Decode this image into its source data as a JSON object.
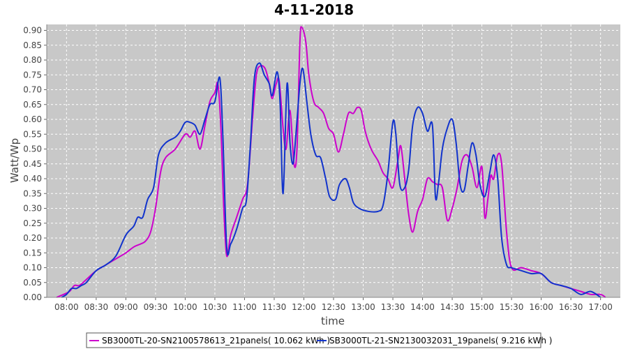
{
  "chart_data": {
    "type": "line",
    "title": "4-11-2018",
    "xlabel": "time",
    "ylabel": "Watt/Wp",
    "ylim": [
      0,
      0.92
    ],
    "y_ticks": [
      "0.00",
      "0.05",
      "0.10",
      "0.15",
      "0.20",
      "0.25",
      "0.30",
      "0.35",
      "0.40",
      "0.45",
      "0.50",
      "0.55",
      "0.60",
      "0.65",
      "0.70",
      "0.75",
      "0.80",
      "0.85",
      "0.90"
    ],
    "x_ticks": [
      "08:00",
      "08:30",
      "09:00",
      "09:30",
      "10:00",
      "10:30",
      "11:00",
      "11:30",
      "12:00",
      "12:30",
      "13:00",
      "13:30",
      "14:00",
      "14:30",
      "15:00",
      "15:30",
      "16:00",
      "16:30",
      "17:00"
    ],
    "grid": true,
    "legend_position": "bottom",
    "colors": {
      "plot_bg": "#c8c8c8",
      "grid": "#ffffff"
    },
    "series": [
      {
        "name": "SB3000TL-20-SN2100578613_21panels( 10.062 kWh )",
        "color": "#cc00cc",
        "points": [
          [
            "07:50",
            0.0
          ],
          [
            "07:57",
            0.01
          ],
          [
            "08:03",
            0.02
          ],
          [
            "08:08",
            0.04
          ],
          [
            "08:13",
            0.04
          ],
          [
            "08:20",
            0.06
          ],
          [
            "08:30",
            0.09
          ],
          [
            "08:40",
            0.11
          ],
          [
            "08:50",
            0.13
          ],
          [
            "09:00",
            0.15
          ],
          [
            "09:08",
            0.17
          ],
          [
            "09:15",
            0.18
          ],
          [
            "09:20",
            0.19
          ],
          [
            "09:25",
            0.22
          ],
          [
            "09:30",
            0.3
          ],
          [
            "09:35",
            0.42
          ],
          [
            "09:40",
            0.47
          ],
          [
            "09:50",
            0.5
          ],
          [
            "10:00",
            0.55
          ],
          [
            "10:05",
            0.54
          ],
          [
            "10:10",
            0.56
          ],
          [
            "10:15",
            0.5
          ],
          [
            "10:20",
            0.58
          ],
          [
            "10:25",
            0.66
          ],
          [
            "10:30",
            0.69
          ],
          [
            "10:33",
            0.72
          ],
          [
            "10:36",
            0.58
          ],
          [
            "10:39",
            0.3
          ],
          [
            "10:42",
            0.14
          ],
          [
            "10:46",
            0.21
          ],
          [
            "10:52",
            0.27
          ],
          [
            "10:58",
            0.33
          ],
          [
            "11:03",
            0.38
          ],
          [
            "11:08",
            0.6
          ],
          [
            "11:12",
            0.75
          ],
          [
            "11:16",
            0.78
          ],
          [
            "11:21",
            0.77
          ],
          [
            "11:25",
            0.72
          ],
          [
            "11:28",
            0.67
          ],
          [
            "11:32",
            0.72
          ],
          [
            "11:35",
            0.73
          ],
          [
            "11:39",
            0.57
          ],
          [
            "11:42",
            0.5
          ],
          [
            "11:46",
            0.63
          ],
          [
            "11:50",
            0.45
          ],
          [
            "11:53",
            0.5
          ],
          [
            "11:56",
            0.86
          ],
          [
            "11:58",
            0.91
          ],
          [
            "12:02",
            0.86
          ],
          [
            "12:05",
            0.75
          ],
          [
            "12:10",
            0.66
          ],
          [
            "12:15",
            0.64
          ],
          [
            "12:20",
            0.62
          ],
          [
            "12:25",
            0.57
          ],
          [
            "12:30",
            0.55
          ],
          [
            "12:35",
            0.49
          ],
          [
            "12:40",
            0.55
          ],
          [
            "12:45",
            0.62
          ],
          [
            "12:50",
            0.62
          ],
          [
            "12:54",
            0.64
          ],
          [
            "12:58",
            0.63
          ],
          [
            "13:02",
            0.56
          ],
          [
            "13:08",
            0.5
          ],
          [
            "13:15",
            0.46
          ],
          [
            "13:20",
            0.42
          ],
          [
            "13:25",
            0.4
          ],
          [
            "13:30",
            0.37
          ],
          [
            "13:35",
            0.46
          ],
          [
            "13:38",
            0.51
          ],
          [
            "13:42",
            0.4
          ],
          [
            "13:46",
            0.28
          ],
          [
            "13:50",
            0.22
          ],
          [
            "13:55",
            0.29
          ],
          [
            "14:00",
            0.33
          ],
          [
            "14:05",
            0.4
          ],
          [
            "14:10",
            0.39
          ],
          [
            "14:15",
            0.38
          ],
          [
            "14:20",
            0.37
          ],
          [
            "14:25",
            0.26
          ],
          [
            "14:30",
            0.3
          ],
          [
            "14:35",
            0.37
          ],
          [
            "14:40",
            0.46
          ],
          [
            "14:45",
            0.48
          ],
          [
            "14:50",
            0.44
          ],
          [
            "14:55",
            0.37
          ],
          [
            "15:00",
            0.44
          ],
          [
            "15:03",
            0.27
          ],
          [
            "15:06",
            0.33
          ],
          [
            "15:09",
            0.41
          ],
          [
            "15:12",
            0.4
          ],
          [
            "15:16",
            0.48
          ],
          [
            "15:20",
            0.45
          ],
          [
            "15:25",
            0.22
          ],
          [
            "15:30",
            0.1
          ],
          [
            "15:40",
            0.1
          ],
          [
            "15:50",
            0.09
          ],
          [
            "16:00",
            0.08
          ],
          [
            "16:10",
            0.05
          ],
          [
            "16:20",
            0.04
          ],
          [
            "16:30",
            0.03
          ],
          [
            "16:40",
            0.02
          ],
          [
            "16:50",
            0.01
          ],
          [
            "17:00",
            0.01
          ],
          [
            "17:05",
            0.0
          ]
        ]
      },
      {
        "name": "SB3000TL-21-SN2130032031_19panels( 9.216 kWh )",
        "color": "#1133cc",
        "points": [
          [
            "07:55",
            0.0
          ],
          [
            "08:00",
            0.01
          ],
          [
            "08:05",
            0.03
          ],
          [
            "08:10",
            0.03
          ],
          [
            "08:15",
            0.04
          ],
          [
            "08:20",
            0.05
          ],
          [
            "08:30",
            0.09
          ],
          [
            "08:40",
            0.11
          ],
          [
            "08:50",
            0.14
          ],
          [
            "09:00",
            0.21
          ],
          [
            "09:08",
            0.24
          ],
          [
            "09:12",
            0.27
          ],
          [
            "09:17",
            0.27
          ],
          [
            "09:22",
            0.33
          ],
          [
            "09:28",
            0.37
          ],
          [
            "09:33",
            0.48
          ],
          [
            "09:40",
            0.52
          ],
          [
            "09:50",
            0.54
          ],
          [
            "09:55",
            0.56
          ],
          [
            "10:00",
            0.59
          ],
          [
            "10:05",
            0.59
          ],
          [
            "10:10",
            0.58
          ],
          [
            "10:15",
            0.55
          ],
          [
            "10:20",
            0.6
          ],
          [
            "10:25",
            0.65
          ],
          [
            "10:30",
            0.66
          ],
          [
            "10:35",
            0.74
          ],
          [
            "10:38",
            0.55
          ],
          [
            "10:42",
            0.17
          ],
          [
            "10:46",
            0.18
          ],
          [
            "10:52",
            0.23
          ],
          [
            "10:58",
            0.3
          ],
          [
            "11:02",
            0.33
          ],
          [
            "11:06",
            0.52
          ],
          [
            "11:10",
            0.74
          ],
          [
            "11:15",
            0.79
          ],
          [
            "11:20",
            0.75
          ],
          [
            "11:25",
            0.72
          ],
          [
            "11:28",
            0.68
          ],
          [
            "11:33",
            0.76
          ],
          [
            "11:36",
            0.65
          ],
          [
            "11:39",
            0.35
          ],
          [
            "11:43",
            0.72
          ],
          [
            "11:46",
            0.52
          ],
          [
            "11:49",
            0.45
          ],
          [
            "11:52",
            0.55
          ],
          [
            "11:56",
            0.72
          ],
          [
            "11:59",
            0.77
          ],
          [
            "12:03",
            0.66
          ],
          [
            "12:07",
            0.55
          ],
          [
            "12:12",
            0.48
          ],
          [
            "12:17",
            0.47
          ],
          [
            "12:22",
            0.4
          ],
          [
            "12:26",
            0.34
          ],
          [
            "12:32",
            0.33
          ],
          [
            "12:36",
            0.38
          ],
          [
            "12:42",
            0.4
          ],
          [
            "12:46",
            0.37
          ],
          [
            "12:50",
            0.32
          ],
          [
            "12:56",
            0.3
          ],
          [
            "13:05",
            0.29
          ],
          [
            "13:15",
            0.29
          ],
          [
            "13:20",
            0.31
          ],
          [
            "13:25",
            0.42
          ],
          [
            "13:30",
            0.59
          ],
          [
            "13:33",
            0.55
          ],
          [
            "13:37",
            0.38
          ],
          [
            "13:42",
            0.37
          ],
          [
            "13:46",
            0.43
          ],
          [
            "13:50",
            0.58
          ],
          [
            "13:55",
            0.64
          ],
          [
            "14:00",
            0.62
          ],
          [
            "14:05",
            0.56
          ],
          [
            "14:10",
            0.58
          ],
          [
            "14:13",
            0.34
          ],
          [
            "14:16",
            0.38
          ],
          [
            "14:20",
            0.5
          ],
          [
            "14:25",
            0.57
          ],
          [
            "14:30",
            0.6
          ],
          [
            "14:34",
            0.52
          ],
          [
            "14:38",
            0.38
          ],
          [
            "14:42",
            0.36
          ],
          [
            "14:46",
            0.44
          ],
          [
            "14:50",
            0.52
          ],
          [
            "14:54",
            0.48
          ],
          [
            "14:58",
            0.38
          ],
          [
            "15:03",
            0.34
          ],
          [
            "15:08",
            0.42
          ],
          [
            "15:12",
            0.48
          ],
          [
            "15:16",
            0.4
          ],
          [
            "15:20",
            0.2
          ],
          [
            "15:25",
            0.11
          ],
          [
            "15:30",
            0.1
          ],
          [
            "15:40",
            0.09
          ],
          [
            "15:50",
            0.08
          ],
          [
            "16:00",
            0.08
          ],
          [
            "16:10",
            0.05
          ],
          [
            "16:20",
            0.04
          ],
          [
            "16:30",
            0.03
          ],
          [
            "16:40",
            0.01
          ],
          [
            "16:50",
            0.02
          ],
          [
            "17:00",
            0.0
          ]
        ]
      }
    ]
  }
}
